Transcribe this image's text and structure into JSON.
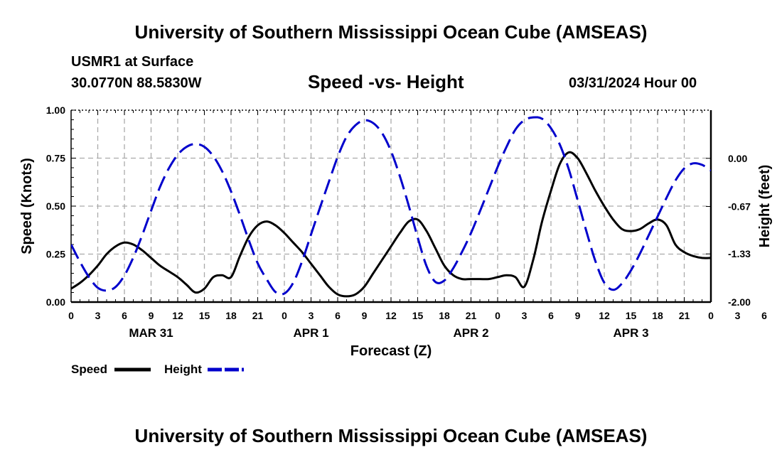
{
  "header": {
    "title": "University of Southern Mississippi Ocean Cube (AMSEAS)",
    "station": "USMR1 at Surface",
    "coordinates": "30.0770N  88.5830W",
    "datetime": "03/31/2024 Hour 00"
  },
  "footer": {
    "title": "University of Southern Mississippi Ocean Cube (AMSEAS)"
  },
  "chart_data": {
    "type": "line",
    "title": "Speed -vs- Height",
    "xlabel": "Forecast (Z)",
    "ylabel": "Speed (Knots)",
    "y2label": "Height (feet)",
    "xlim": [
      0,
      72
    ],
    "ylim": [
      0,
      1
    ],
    "y2lim": [
      -2.0,
      0.67
    ],
    "grid": true,
    "x_tick_labels": [
      "0",
      "3",
      "6",
      "9",
      "12",
      "15",
      "18",
      "21",
      "0",
      "3",
      "6",
      "9",
      "12",
      "15",
      "18",
      "21",
      "0",
      "3",
      "6",
      "9",
      "12",
      "15",
      "18",
      "21",
      "0",
      "3",
      "6",
      "9",
      "12",
      "15",
      "18",
      "21",
      "0"
    ],
    "day_labels": [
      {
        "label": "MAR 31",
        "hour": 9
      },
      {
        "label": "APR 1",
        "hour": 27
      },
      {
        "label": "APR 2",
        "hour": 45
      },
      {
        "label": "APR 3",
        "hour": 63
      }
    ],
    "y_ticks": [
      "0.00",
      "0.25",
      "0.50",
      "0.75",
      "1.00"
    ],
    "y2_ticks": [
      "-2.00",
      "-1.33",
      "-0.67",
      "0.00"
    ],
    "legend": [
      {
        "label": "Speed",
        "color": "#000000",
        "style": "solid"
      },
      {
        "label": "Height",
        "color": "#0000cc",
        "style": "dashed"
      }
    ],
    "series": [
      {
        "name": "Speed",
        "axis": "left",
        "color": "#000000",
        "style": "solid",
        "x": [
          0,
          1,
          2,
          3,
          4,
          5,
          6,
          7,
          8,
          9,
          10,
          11,
          12,
          13,
          14,
          15,
          16,
          17,
          18,
          19,
          20,
          21,
          22,
          23,
          24,
          25,
          26,
          27,
          28,
          29,
          30,
          31,
          32,
          33,
          34,
          35,
          36,
          37,
          38,
          39,
          40,
          41,
          42,
          43,
          44,
          45,
          46,
          47,
          48,
          49,
          50,
          51,
          52,
          53,
          54,
          55,
          56,
          57,
          58,
          59,
          60,
          61,
          62,
          63,
          64,
          65,
          66,
          67,
          68,
          69,
          70,
          71,
          72
        ],
        "values": [
          0.07,
          0.1,
          0.14,
          0.19,
          0.25,
          0.29,
          0.31,
          0.3,
          0.27,
          0.23,
          0.19,
          0.16,
          0.13,
          0.09,
          0.05,
          0.07,
          0.13,
          0.14,
          0.13,
          0.24,
          0.34,
          0.4,
          0.42,
          0.4,
          0.36,
          0.31,
          0.26,
          0.2,
          0.14,
          0.08,
          0.04,
          0.03,
          0.04,
          0.08,
          0.15,
          0.22,
          0.29,
          0.36,
          0.42,
          0.43,
          0.37,
          0.28,
          0.19,
          0.14,
          0.12,
          0.12,
          0.12,
          0.12,
          0.13,
          0.14,
          0.13,
          0.08,
          0.22,
          0.42,
          0.58,
          0.72,
          0.78,
          0.75,
          0.67,
          0.58,
          0.5,
          0.43,
          0.38,
          0.37,
          0.38,
          0.41,
          0.43,
          0.4,
          0.3,
          0.26,
          0.24,
          0.23,
          0.23
        ]
      },
      {
        "name": "Height",
        "axis": "right",
        "color": "#0000cc",
        "style": "dashed",
        "x": [
          0,
          1,
          2,
          3,
          4,
          5,
          6,
          7,
          8,
          9,
          10,
          11,
          12,
          13,
          14,
          15,
          16,
          17,
          18,
          19,
          20,
          21,
          22,
          23,
          24,
          25,
          26,
          27,
          28,
          29,
          30,
          31,
          32,
          33,
          34,
          35,
          36,
          37,
          38,
          39,
          40,
          41,
          42,
          43,
          44,
          45,
          46,
          47,
          48,
          49,
          50,
          51,
          52,
          53,
          54,
          55,
          56,
          57,
          58,
          59,
          60,
          61,
          62,
          63,
          64,
          65,
          66,
          67,
          68,
          69,
          70,
          71,
          72
        ],
        "values": [
          -1.2,
          -1.44,
          -1.65,
          -1.8,
          -1.84,
          -1.79,
          -1.63,
          -1.38,
          -1.07,
          -0.73,
          -0.4,
          -0.14,
          0.05,
          0.16,
          0.2,
          0.16,
          0.03,
          -0.18,
          -0.46,
          -0.79,
          -1.14,
          -1.46,
          -1.68,
          -1.86,
          -1.88,
          -1.73,
          -1.43,
          -1.06,
          -0.69,
          -0.33,
          0.02,
          0.3,
          0.46,
          0.53,
          0.49,
          0.35,
          0.1,
          -0.25,
          -0.66,
          -1.1,
          -1.5,
          -1.72,
          -1.7,
          -1.53,
          -1.3,
          -1.04,
          -0.74,
          -0.43,
          -0.12,
          0.16,
          0.4,
          0.53,
          0.57,
          0.55,
          0.42,
          0.19,
          -0.15,
          -0.58,
          -1.02,
          -1.43,
          -1.73,
          -1.83,
          -1.74,
          -1.56,
          -1.33,
          -1.07,
          -0.81,
          -0.55,
          -0.31,
          -0.14,
          -0.07,
          -0.09,
          -0.17
        ]
      }
    ]
  }
}
